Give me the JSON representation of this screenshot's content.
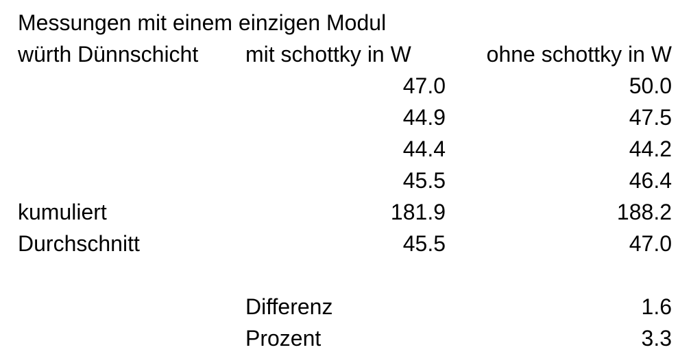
{
  "sheet": {
    "title": "Messungen mit einem einzigen Modul",
    "header": {
      "label": "würth Dünnschicht",
      "col_with": "mit schottky in W",
      "col_without": "ohne schottky in W"
    },
    "measurements": [
      {
        "with": "47.0",
        "without": "50.0"
      },
      {
        "with": "44.9",
        "without": "47.5"
      },
      {
        "with": "44.4",
        "without": "44.2"
      },
      {
        "with": "45.5",
        "without": "46.4"
      }
    ],
    "cumulative": {
      "label": "kumuliert",
      "with": "181.9",
      "without": "188.2"
    },
    "average": {
      "label": "Durchschnitt",
      "with": "45.5",
      "without": "47.0"
    },
    "difference": {
      "label": "Differenz",
      "value": "1.6"
    },
    "percent": {
      "label": "Prozent",
      "value": "3.3"
    }
  }
}
